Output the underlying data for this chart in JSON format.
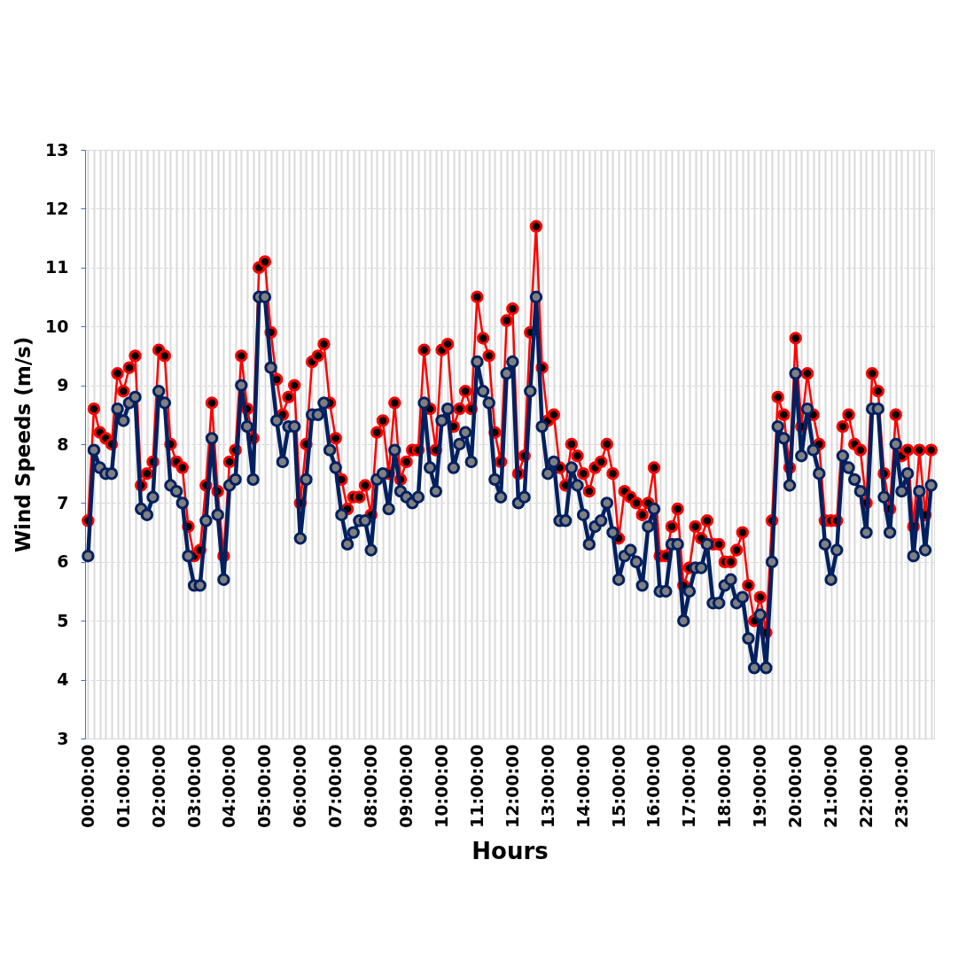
{
  "chart_data": {
    "type": "line",
    "xlabel": "Hours",
    "ylabel": "Wind Speeds (m/s)",
    "categories": [
      "00:00:00",
      null,
      null,
      null,
      null,
      null,
      "01:00:00",
      null,
      null,
      null,
      null,
      null,
      "02:00:00",
      null,
      null,
      null,
      null,
      null,
      "03:00:00",
      null,
      null,
      null,
      null,
      null,
      "04:00:00",
      null,
      null,
      null,
      null,
      null,
      "05:00:00",
      null,
      null,
      null,
      null,
      null,
      "06:00:00",
      null,
      null,
      null,
      null,
      null,
      "07:00:00",
      null,
      null,
      null,
      null,
      null,
      "08:00:00",
      null,
      null,
      null,
      null,
      null,
      "09:00:00",
      null,
      null,
      null,
      null,
      null,
      "10:00:00",
      null,
      null,
      null,
      null,
      null,
      "11:00:00",
      null,
      null,
      null,
      null,
      null,
      "12:00:00",
      null,
      null,
      null,
      null,
      null,
      "13:00:00",
      null,
      null,
      null,
      null,
      null,
      "14:00:00",
      null,
      null,
      null,
      null,
      null,
      "15:00:00",
      null,
      null,
      null,
      null,
      null,
      "16:00:00",
      null,
      null,
      null,
      null,
      null,
      "17:00:00",
      null,
      null,
      null,
      null,
      null,
      "18:00:00",
      null,
      null,
      null,
      null,
      null,
      "19:00:00",
      null,
      null,
      null,
      null,
      null,
      "20:00:00",
      null,
      null,
      null,
      null,
      null,
      "21:00:00",
      null,
      null,
      null,
      null,
      null,
      "22:00:00",
      null,
      null,
      null,
      null,
      null,
      "23:00:00",
      null,
      null,
      null,
      null,
      null
    ],
    "series": [
      {
        "color": "#ff0000",
        "values": [
          6.7,
          8.6,
          8.2,
          8.1,
          8.0,
          9.2,
          8.9,
          9.3,
          9.5,
          7.3,
          7.5,
          7.7,
          9.6,
          9.5,
          8.0,
          7.7,
          7.6,
          6.6,
          6.1,
          6.2,
          7.3,
          8.7,
          7.2,
          6.1,
          7.7,
          7.9,
          9.5,
          8.6,
          8.1,
          11.0,
          11.1,
          9.9,
          9.1,
          8.5,
          8.8,
          9.0,
          7.0,
          8.0,
          9.4,
          9.5,
          9.7,
          8.7,
          8.1,
          7.4,
          6.9,
          7.1,
          7.1,
          7.3,
          6.8,
          8.2,
          8.4,
          7.5,
          8.7,
          7.4,
          7.7,
          7.9,
          7.9,
          9.6,
          8.6,
          7.9,
          9.6,
          9.7,
          8.3,
          8.6,
          8.9,
          8.6,
          10.5,
          9.8,
          9.5,
          8.2,
          7.7,
          10.1,
          10.3,
          7.5,
          7.8,
          9.9,
          11.7,
          9.3,
          8.4,
          8.5,
          7.6,
          7.3,
          8.0,
          7.8,
          7.5,
          7.2,
          7.6,
          7.7,
          8.0,
          7.5,
          6.4,
          7.2,
          7.1,
          7.0,
          6.8,
          7.0,
          7.6,
          6.1,
          6.1,
          6.6,
          6.9,
          5.6,
          5.9,
          6.6,
          6.4,
          6.7,
          6.3,
          6.3,
          6.0,
          6.0,
          6.2,
          6.5,
          5.6,
          5.0,
          5.4,
          4.8,
          6.7,
          8.8,
          8.5,
          7.6,
          9.8,
          8.3,
          9.2,
          8.5,
          8.0,
          6.7,
          6.7,
          6.7,
          8.3,
          8.5,
          8.0,
          7.9,
          7.0,
          9.2,
          8.9,
          7.5,
          6.9,
          8.5,
          7.8,
          7.9,
          6.6,
          7.9,
          6.8,
          7.9
        ]
      },
      {
        "color": "#002060",
        "values": [
          6.1,
          7.9,
          7.6,
          7.5,
          7.5,
          8.6,
          8.4,
          8.7,
          8.8,
          6.9,
          6.8,
          7.1,
          8.9,
          8.7,
          7.3,
          7.2,
          7.0,
          6.1,
          5.6,
          5.6,
          6.7,
          8.1,
          6.8,
          5.7,
          7.3,
          7.4,
          9.0,
          8.3,
          7.4,
          10.5,
          10.5,
          9.3,
          8.4,
          7.7,
          8.3,
          8.3,
          6.4,
          7.4,
          8.5,
          8.5,
          8.7,
          7.9,
          7.6,
          6.8,
          6.3,
          6.5,
          6.7,
          6.7,
          6.2,
          7.4,
          7.5,
          6.9,
          7.9,
          7.2,
          7.1,
          7.0,
          7.1,
          8.7,
          7.6,
          7.2,
          8.4,
          8.6,
          7.6,
          8.0,
          8.2,
          7.7,
          9.4,
          8.9,
          8.7,
          7.4,
          7.1,
          9.2,
          9.4,
          7.0,
          7.1,
          8.9,
          10.5,
          8.3,
          7.5,
          7.7,
          6.7,
          6.7,
          7.6,
          7.3,
          6.8,
          6.3,
          6.6,
          6.7,
          7.0,
          6.5,
          5.7,
          6.1,
          6.2,
          6.0,
          5.6,
          6.6,
          6.9,
          5.5,
          5.5,
          6.3,
          6.3,
          5.0,
          5.5,
          5.9,
          5.9,
          6.3,
          5.3,
          5.3,
          5.6,
          5.7,
          5.3,
          5.4,
          4.7,
          4.2,
          5.1,
          4.2,
          6.0,
          8.3,
          8.1,
          7.3,
          9.2,
          7.8,
          8.6,
          7.9,
          7.5,
          6.3,
          5.7,
          6.2,
          7.8,
          7.6,
          7.4,
          7.2,
          6.5,
          8.6,
          8.6,
          7.1,
          6.5,
          8.0,
          7.2,
          7.5,
          6.1,
          7.2,
          6.2,
          7.3
        ]
      }
    ],
    "ylim": [
      3,
      13
    ],
    "yticks": [
      3,
      4,
      5,
      6,
      7,
      8,
      9,
      10,
      11,
      12,
      13
    ],
    "grid": true,
    "marker": "circle",
    "line_style": "solid"
  }
}
